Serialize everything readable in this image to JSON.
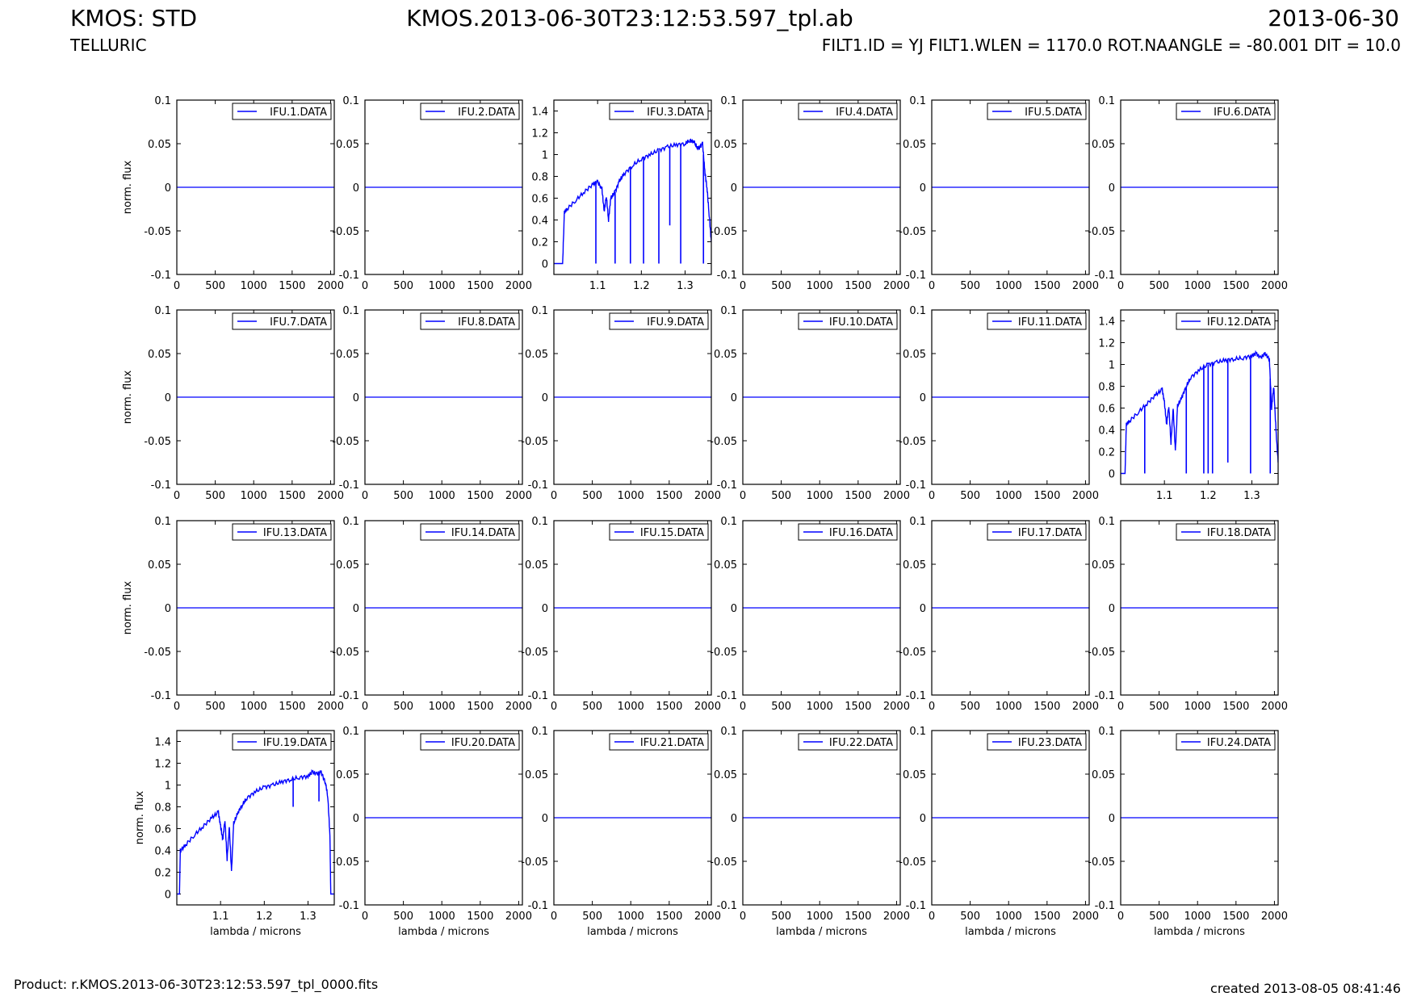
{
  "header": {
    "left_title": "KMOS: STD",
    "left_subtitle": "TELLURIC",
    "center_title": "KMOS.2013-06-30T23:12:53.597_tpl.ab",
    "right_title": "2013-06-30",
    "right_subtitle": "FILT1.ID = YJ FILT1.WLEN = 1170.0 ROT.NAANGLE = -80.001 DIT = 10.0"
  },
  "footer": {
    "product": "Product: r.KMOS.2013-06-30T23:12:53.597_tpl_0000.fits",
    "created": "created 2013-08-05 08:41:46"
  },
  "colors": {
    "series": "#0000ff",
    "axes": "#000000",
    "background": "#ffffff"
  },
  "chart_data": {
    "type": "line",
    "grid": false,
    "legend_placement": "top-right",
    "ylabel": "norm. flux",
    "xlabel": "lambda / microns",
    "panels": [
      {
        "name": "IFU.1.DATA",
        "kind": "empty",
        "xlim": [
          0,
          2048
        ],
        "ylim": [
          -0.1,
          0.1
        ],
        "xticks": [
          0,
          500,
          1000,
          1500,
          2000
        ],
        "yticks": [
          -0.1,
          -0.05,
          0,
          0.05,
          0.1
        ],
        "ytick_labels": [
          "-0.1",
          "-0.05",
          "0",
          "0.05",
          "0.1"
        ],
        "ylabel": "norm. flux",
        "xlabel": ""
      },
      {
        "name": "IFU.2.DATA",
        "kind": "empty",
        "xlim": [
          0,
          2048
        ],
        "ylim": [
          -0.1,
          0.1
        ],
        "xticks": [
          0,
          500,
          1000,
          1500,
          2000
        ],
        "yticks": [
          -0.1,
          -0.05,
          0,
          0.05,
          0.1
        ],
        "ytick_labels": [
          "-0.1",
          "-0.05",
          "0",
          "0.05",
          "0.1"
        ],
        "ylabel": "",
        "xlabel": ""
      },
      {
        "name": "IFU.3.DATA",
        "kind": "spectrum",
        "xlim": [
          1.0,
          1.36
        ],
        "ylim": [
          -0.1,
          1.5
        ],
        "xticks": [
          1.1,
          1.2,
          1.3
        ],
        "xtick_labels": [
          "1.1",
          "1.2",
          "1.3"
        ],
        "yticks": [
          0,
          0.2,
          0.4,
          0.6,
          0.8,
          1.0,
          1.2,
          1.4
        ],
        "ytick_labels": [
          "0",
          "0.2",
          "0.4",
          "0.6",
          "0.8",
          "1",
          "1.2",
          "1.4"
        ],
        "ylabel": "",
        "xlabel": "",
        "x": [
          1.0,
          1.02,
          1.024,
          1.03,
          1.05,
          1.07,
          1.09,
          1.1,
          1.11,
          1.115,
          1.12,
          1.125,
          1.13,
          1.14,
          1.15,
          1.16,
          1.18,
          1.2,
          1.22,
          1.24,
          1.26,
          1.28,
          1.3,
          1.31,
          1.32,
          1.33,
          1.34,
          1.345,
          1.35,
          1.355,
          1.36
        ],
        "y": [
          0.0,
          0.0,
          0.47,
          0.5,
          0.58,
          0.66,
          0.73,
          0.75,
          0.68,
          0.48,
          0.62,
          0.4,
          0.6,
          0.66,
          0.76,
          0.82,
          0.9,
          0.96,
          1.0,
          1.04,
          1.07,
          1.09,
          1.1,
          1.13,
          1.12,
          1.05,
          1.1,
          0.85,
          0.7,
          0.45,
          0.2
        ],
        "dips": [
          {
            "x": 1.096,
            "y": 0.0
          },
          {
            "x": 1.14,
            "y": 0.0
          },
          {
            "x": 1.175,
            "y": 0.0
          },
          {
            "x": 1.205,
            "y": 0.0
          },
          {
            "x": 1.24,
            "y": 0.0
          },
          {
            "x": 1.265,
            "y": 0.35
          },
          {
            "x": 1.29,
            "y": 0.0
          },
          {
            "x": 1.342,
            "y": 0.0
          }
        ]
      },
      {
        "name": "IFU.4.DATA",
        "kind": "empty",
        "xlim": [
          0,
          2048
        ],
        "ylim": [
          -0.1,
          0.1
        ],
        "xticks": [
          0,
          500,
          1000,
          1500,
          2000
        ],
        "yticks": [
          -0.1,
          -0.05,
          0,
          0.05,
          0.1
        ],
        "ytick_labels": [
          "-0.1",
          "-0.05",
          "0",
          "0.05",
          "0.1"
        ],
        "ylabel": "",
        "xlabel": ""
      },
      {
        "name": "IFU.5.DATA",
        "kind": "empty",
        "xlim": [
          0,
          2048
        ],
        "ylim": [
          -0.1,
          0.1
        ],
        "xticks": [
          0,
          500,
          1000,
          1500,
          2000
        ],
        "yticks": [
          -0.1,
          -0.05,
          0,
          0.05,
          0.1
        ],
        "ytick_labels": [
          "-0.1",
          "-0.05",
          "0",
          "0.05",
          "0.1"
        ],
        "ylabel": "",
        "xlabel": ""
      },
      {
        "name": "IFU.6.DATA",
        "kind": "empty",
        "xlim": [
          0,
          2048
        ],
        "ylim": [
          -0.1,
          0.1
        ],
        "xticks": [
          0,
          500,
          1000,
          1500,
          2000
        ],
        "yticks": [
          -0.1,
          -0.05,
          0,
          0.05,
          0.1
        ],
        "ytick_labels": [
          "-0.1",
          "-0.05",
          "0",
          "0.05",
          "0.1"
        ],
        "ylabel": "",
        "xlabel": ""
      },
      {
        "name": "IFU.7.DATA",
        "kind": "empty",
        "xlim": [
          0,
          2048
        ],
        "ylim": [
          -0.1,
          0.1
        ],
        "xticks": [
          0,
          500,
          1000,
          1500,
          2000
        ],
        "yticks": [
          -0.1,
          -0.05,
          0,
          0.05,
          0.1
        ],
        "ytick_labels": [
          "-0.1",
          "-0.05",
          "0",
          "0.05",
          "0.1"
        ],
        "ylabel": "norm. flux",
        "xlabel": ""
      },
      {
        "name": "IFU.8.DATA",
        "kind": "empty",
        "xlim": [
          0,
          2048
        ],
        "ylim": [
          -0.1,
          0.1
        ],
        "xticks": [
          0,
          500,
          1000,
          1500,
          2000
        ],
        "yticks": [
          -0.1,
          -0.05,
          0,
          0.05,
          0.1
        ],
        "ytick_labels": [
          "-0.1",
          "-0.05",
          "0",
          "0.05",
          "0.1"
        ],
        "ylabel": "",
        "xlabel": ""
      },
      {
        "name": "IFU.9.DATA",
        "kind": "empty",
        "xlim": [
          0,
          2048
        ],
        "ylim": [
          -0.1,
          0.1
        ],
        "xticks": [
          0,
          500,
          1000,
          1500,
          2000
        ],
        "yticks": [
          -0.1,
          -0.05,
          0,
          0.05,
          0.1
        ],
        "ytick_labels": [
          "-0.1",
          "-0.05",
          "0",
          "0.05",
          "0.1"
        ],
        "ylabel": "",
        "xlabel": ""
      },
      {
        "name": "IFU.10.DATA",
        "kind": "empty",
        "xlim": [
          0,
          2048
        ],
        "ylim": [
          -0.1,
          0.1
        ],
        "xticks": [
          0,
          500,
          1000,
          1500,
          2000
        ],
        "yticks": [
          -0.1,
          -0.05,
          0,
          0.05,
          0.1
        ],
        "ytick_labels": [
          "-0.1",
          "-0.05",
          "0",
          "0.05",
          "0.1"
        ],
        "ylabel": "",
        "xlabel": ""
      },
      {
        "name": "IFU.11.DATA",
        "kind": "empty",
        "xlim": [
          0,
          2048
        ],
        "ylim": [
          -0.1,
          0.1
        ],
        "xticks": [
          0,
          500,
          1000,
          1500,
          2000
        ],
        "yticks": [
          -0.1,
          -0.05,
          0,
          0.05,
          0.1
        ],
        "ytick_labels": [
          "-0.1",
          "-0.05",
          "0",
          "0.05",
          "0.1"
        ],
        "ylabel": "",
        "xlabel": ""
      },
      {
        "name": "IFU.12.DATA",
        "kind": "spectrum",
        "xlim": [
          1.0,
          1.36
        ],
        "ylim": [
          -0.1,
          1.5
        ],
        "xticks": [
          1.1,
          1.2,
          1.3
        ],
        "xtick_labels": [
          "1.1",
          "1.2",
          "1.3"
        ],
        "yticks": [
          0,
          0.2,
          0.4,
          0.6,
          0.8,
          1.0,
          1.2,
          1.4
        ],
        "ytick_labels": [
          "0",
          "0.2",
          "0.4",
          "0.6",
          "0.8",
          "1",
          "1.2",
          "1.4"
        ],
        "ylabel": "",
        "xlabel": "",
        "x": [
          1.0,
          1.01,
          1.013,
          1.02,
          1.04,
          1.06,
          1.08,
          1.095,
          1.1,
          1.105,
          1.11,
          1.115,
          1.12,
          1.125,
          1.13,
          1.14,
          1.15,
          1.16,
          1.18,
          1.2,
          1.22,
          1.24,
          1.26,
          1.28,
          1.3,
          1.31,
          1.32,
          1.33,
          1.34,
          1.345,
          1.35,
          1.355,
          1.36
        ],
        "y": [
          0.0,
          0.0,
          0.45,
          0.48,
          0.56,
          0.64,
          0.72,
          0.77,
          0.65,
          0.45,
          0.62,
          0.28,
          0.6,
          0.2,
          0.62,
          0.7,
          0.8,
          0.88,
          0.95,
          1.0,
          1.02,
          1.04,
          1.05,
          1.06,
          1.08,
          1.1,
          1.06,
          1.1,
          1.05,
          0.6,
          0.8,
          0.4,
          0.1
        ],
        "dips": [
          {
            "x": 1.055,
            "y": 0.0
          },
          {
            "x": 1.15,
            "y": 0.0
          },
          {
            "x": 1.19,
            "y": 0.0
          },
          {
            "x": 1.2,
            "y": 0.0
          },
          {
            "x": 1.21,
            "y": 0.0
          },
          {
            "x": 1.245,
            "y": 0.1
          },
          {
            "x": 1.297,
            "y": 0.0
          },
          {
            "x": 1.342,
            "y": 0.0
          }
        ]
      },
      {
        "name": "IFU.13.DATA",
        "kind": "empty",
        "xlim": [
          0,
          2048
        ],
        "ylim": [
          -0.1,
          0.1
        ],
        "xticks": [
          0,
          500,
          1000,
          1500,
          2000
        ],
        "yticks": [
          -0.1,
          -0.05,
          0,
          0.05,
          0.1
        ],
        "ytick_labels": [
          "-0.1",
          "-0.05",
          "0",
          "0.05",
          "0.1"
        ],
        "ylabel": "norm. flux",
        "xlabel": ""
      },
      {
        "name": "IFU.14.DATA",
        "kind": "empty",
        "xlim": [
          0,
          2048
        ],
        "ylim": [
          -0.1,
          0.1
        ],
        "xticks": [
          0,
          500,
          1000,
          1500,
          2000
        ],
        "yticks": [
          -0.1,
          -0.05,
          0,
          0.05,
          0.1
        ],
        "ytick_labels": [
          "-0.1",
          "-0.05",
          "0",
          "0.05",
          "0.1"
        ],
        "ylabel": "",
        "xlabel": ""
      },
      {
        "name": "IFU.15.DATA",
        "kind": "empty",
        "xlim": [
          0,
          2048
        ],
        "ylim": [
          -0.1,
          0.1
        ],
        "xticks": [
          0,
          500,
          1000,
          1500,
          2000
        ],
        "yticks": [
          -0.1,
          -0.05,
          0,
          0.05,
          0.1
        ],
        "ytick_labels": [
          "-0.1",
          "-0.05",
          "0",
          "0.05",
          "0.1"
        ],
        "ylabel": "",
        "xlabel": ""
      },
      {
        "name": "IFU.16.DATA",
        "kind": "empty",
        "xlim": [
          0,
          2048
        ],
        "ylim": [
          -0.1,
          0.1
        ],
        "xticks": [
          0,
          500,
          1000,
          1500,
          2000
        ],
        "yticks": [
          -0.1,
          -0.05,
          0,
          0.05,
          0.1
        ],
        "ytick_labels": [
          "-0.1",
          "-0.05",
          "0",
          "0.05",
          "0.1"
        ],
        "ylabel": "",
        "xlabel": ""
      },
      {
        "name": "IFU.17.DATA",
        "kind": "empty",
        "xlim": [
          0,
          2048
        ],
        "ylim": [
          -0.1,
          0.1
        ],
        "xticks": [
          0,
          500,
          1000,
          1500,
          2000
        ],
        "yticks": [
          -0.1,
          -0.05,
          0,
          0.05,
          0.1
        ],
        "ytick_labels": [
          "-0.1",
          "-0.05",
          "0",
          "0.05",
          "0.1"
        ],
        "ylabel": "",
        "xlabel": ""
      },
      {
        "name": "IFU.18.DATA",
        "kind": "empty",
        "xlim": [
          0,
          2048
        ],
        "ylim": [
          -0.1,
          0.1
        ],
        "xticks": [
          0,
          500,
          1000,
          1500,
          2000
        ],
        "yticks": [
          -0.1,
          -0.05,
          0,
          0.05,
          0.1
        ],
        "ytick_labels": [
          "-0.1",
          "-0.05",
          "0",
          "0.05",
          "0.1"
        ],
        "ylabel": "",
        "xlabel": ""
      },
      {
        "name": "IFU.19.DATA",
        "kind": "spectrum",
        "xlim": [
          1.0,
          1.36
        ],
        "ylim": [
          -0.1,
          1.5
        ],
        "xticks": [
          1.1,
          1.2,
          1.3
        ],
        "xtick_labels": [
          "1.1",
          "1.2",
          "1.3"
        ],
        "yticks": [
          0,
          0.2,
          0.4,
          0.6,
          0.8,
          1.0,
          1.2,
          1.4
        ],
        "ytick_labels": [
          "0",
          "0.2",
          "0.4",
          "0.6",
          "0.8",
          "1",
          "1.2",
          "1.4"
        ],
        "ylabel": "norm. flux",
        "xlabel": "lambda / microns",
        "x": [
          1.0,
          1.006,
          1.008,
          1.02,
          1.04,
          1.06,
          1.08,
          1.095,
          1.1,
          1.105,
          1.11,
          1.115,
          1.12,
          1.125,
          1.13,
          1.14,
          1.15,
          1.16,
          1.18,
          1.2,
          1.22,
          1.24,
          1.26,
          1.28,
          1.3,
          1.31,
          1.32,
          1.33,
          1.34,
          1.345,
          1.35,
          1.352,
          1.36
        ],
        "y": [
          0.0,
          0.0,
          0.4,
          0.45,
          0.54,
          0.62,
          0.7,
          0.75,
          0.62,
          0.5,
          0.68,
          0.32,
          0.62,
          0.2,
          0.65,
          0.75,
          0.82,
          0.88,
          0.94,
          0.98,
          1.0,
          1.03,
          1.05,
          1.07,
          1.08,
          1.12,
          1.1,
          1.12,
          1.02,
          0.9,
          0.55,
          0.0,
          0.0
        ],
        "dips": [
          {
            "x": 1.266,
            "y": 0.8
          },
          {
            "x": 1.325,
            "y": 0.85
          }
        ]
      },
      {
        "name": "IFU.20.DATA",
        "kind": "empty",
        "xlim": [
          0,
          2048
        ],
        "ylim": [
          -0.1,
          0.1
        ],
        "xticks": [
          0,
          500,
          1000,
          1500,
          2000
        ],
        "yticks": [
          -0.1,
          -0.05,
          0,
          0.05,
          0.1
        ],
        "ytick_labels": [
          "-0.1",
          "-0.05",
          "0",
          "0.05",
          "0.1"
        ],
        "ylabel": "",
        "xlabel": "lambda / microns"
      },
      {
        "name": "IFU.21.DATA",
        "kind": "empty",
        "xlim": [
          0,
          2048
        ],
        "ylim": [
          -0.1,
          0.1
        ],
        "xticks": [
          0,
          500,
          1000,
          1500,
          2000
        ],
        "yticks": [
          -0.1,
          -0.05,
          0,
          0.05,
          0.1
        ],
        "ytick_labels": [
          "-0.1",
          "-0.05",
          "0",
          "0.05",
          "0.1"
        ],
        "ylabel": "",
        "xlabel": "lambda / microns"
      },
      {
        "name": "IFU.22.DATA",
        "kind": "empty",
        "xlim": [
          0,
          2048
        ],
        "ylim": [
          -0.1,
          0.1
        ],
        "xticks": [
          0,
          500,
          1000,
          1500,
          2000
        ],
        "yticks": [
          -0.1,
          -0.05,
          0,
          0.05,
          0.1
        ],
        "ytick_labels": [
          "-0.1",
          "-0.05",
          "0",
          "0.05",
          "0.1"
        ],
        "ylabel": "",
        "xlabel": "lambda / microns"
      },
      {
        "name": "IFU.23.DATA",
        "kind": "empty",
        "xlim": [
          0,
          2048
        ],
        "ylim": [
          -0.1,
          0.1
        ],
        "xticks": [
          0,
          500,
          1000,
          1500,
          2000
        ],
        "yticks": [
          -0.1,
          -0.05,
          0,
          0.05,
          0.1
        ],
        "ytick_labels": [
          "-0.1",
          "-0.05",
          "0",
          "0.05",
          "0.1"
        ],
        "ylabel": "",
        "xlabel": "lambda / microns"
      },
      {
        "name": "IFU.24.DATA",
        "kind": "empty",
        "xlim": [
          0,
          2048
        ],
        "ylim": [
          -0.1,
          0.1
        ],
        "xticks": [
          0,
          500,
          1000,
          1500,
          2000
        ],
        "yticks": [
          -0.1,
          -0.05,
          0,
          0.05,
          0.1
        ],
        "ytick_labels": [
          "-0.1",
          "-0.05",
          "0",
          "0.05",
          "0.1"
        ],
        "ylabel": "",
        "xlabel": "lambda / microns"
      }
    ]
  }
}
